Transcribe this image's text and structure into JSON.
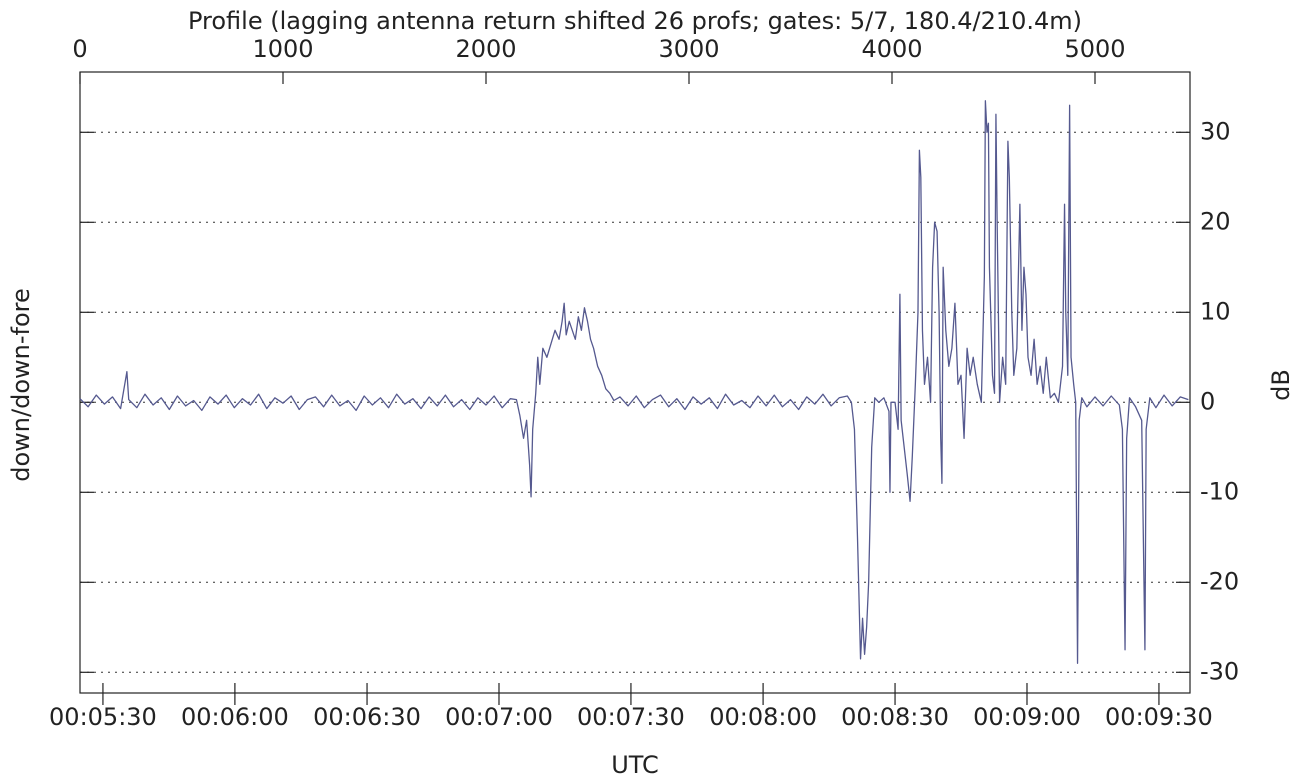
{
  "chart_data": {
    "type": "line",
    "title": "Profile (lagging antenna return shifted 26 profs; gates: 5/7, 180.4/210.4m)",
    "xlabel": "UTC",
    "ylabel": "down/down-fore",
    "y2label": "dB",
    "color": "#55598f",
    "grid": true,
    "xlim": [
      0,
      5468
    ],
    "ylim": [
      -32.3,
      36.7
    ],
    "xticks": [
      0,
      1000,
      2000,
      3000,
      4000,
      5000
    ],
    "x2ticks": [
      {
        "value": 113,
        "label": "00:05:30"
      },
      {
        "value": 763,
        "label": "00:06:00"
      },
      {
        "value": 1414,
        "label": "00:06:30"
      },
      {
        "value": 2064,
        "label": "00:07:00"
      },
      {
        "value": 2714,
        "label": "00:07:30"
      },
      {
        "value": 3365,
        "label": "00:08:00"
      },
      {
        "value": 4015,
        "label": "00:08:30"
      },
      {
        "value": 4665,
        "label": "00:09:00"
      },
      {
        "value": 5315,
        "label": "00:09:30"
      }
    ],
    "yticks": [
      -30,
      -20,
      -10,
      0,
      10,
      20,
      30
    ],
    "x": [
      0,
      40,
      80,
      120,
      160,
      200,
      231,
      240,
      280,
      320,
      360,
      400,
      440,
      480,
      520,
      560,
      600,
      640,
      680,
      720,
      760,
      800,
      840,
      880,
      920,
      960,
      1000,
      1040,
      1080,
      1120,
      1160,
      1200,
      1240,
      1280,
      1320,
      1360,
      1400,
      1440,
      1480,
      1520,
      1560,
      1600,
      1640,
      1680,
      1720,
      1760,
      1800,
      1840,
      1880,
      1920,
      1960,
      2000,
      2040,
      2080,
      2120,
      2150,
      2167,
      2185,
      2200,
      2215,
      2222,
      2230,
      2245,
      2255,
      2265,
      2280,
      2300,
      2320,
      2340,
      2360,
      2375,
      2385,
      2395,
      2410,
      2425,
      2440,
      2455,
      2470,
      2485,
      2500,
      2515,
      2530,
      2550,
      2570,
      2590,
      2610,
      2630,
      2660,
      2700,
      2740,
      2780,
      2820,
      2860,
      2900,
      2940,
      2980,
      3020,
      3060,
      3100,
      3140,
      3180,
      3220,
      3260,
      3300,
      3340,
      3380,
      3420,
      3460,
      3500,
      3540,
      3580,
      3620,
      3660,
      3700,
      3740,
      3780,
      3800,
      3815,
      3830,
      3845,
      3855,
      3865,
      3875,
      3885,
      3900,
      3915,
      3935,
      3960,
      3985,
      3990,
      3995,
      4015,
      4030,
      4039,
      4045,
      4060,
      4075,
      4089,
      4100,
      4115,
      4128,
      4135,
      4142,
      4150,
      4160,
      4175,
      4190,
      4200,
      4210,
      4222,
      4232,
      4240,
      4246,
      4252,
      4265,
      4280,
      4295,
      4310,
      4325,
      4340,
      4355,
      4370,
      4385,
      4400,
      4420,
      4440,
      4455,
      4460,
      4468,
      4475,
      4480,
      4495,
      4505,
      4512,
      4518,
      4530,
      4545,
      4560,
      4571,
      4578,
      4590,
      4600,
      4615,
      4630,
      4640,
      4650,
      4660,
      4670,
      4685,
      4700,
      4715,
      4730,
      4745,
      4760,
      4780,
      4800,
      4820,
      4840,
      4850,
      4856,
      4866,
      4875,
      4882,
      4895,
      4905,
      4914,
      4922,
      4935,
      4960,
      5000,
      5040,
      5080,
      5120,
      5135,
      5148,
      5156,
      5170,
      5200,
      5230,
      5246,
      5252,
      5270,
      5300,
      5340,
      5380,
      5420,
      5460
    ],
    "values": [
      0.4,
      -0.5,
      0.8,
      -0.2,
      0.6,
      -0.7,
      3.4,
      0.3,
      -0.6,
      0.9,
      -0.3,
      0.5,
      -0.8,
      0.7,
      -0.4,
      0.2,
      -0.9,
      0.6,
      -0.2,
      0.8,
      -0.6,
      0.4,
      -0.3,
      0.9,
      -0.7,
      0.5,
      -0.1,
      0.7,
      -0.8,
      0.3,
      0.6,
      -0.5,
      0.8,
      -0.4,
      0.2,
      -0.9,
      0.7,
      -0.3,
      0.5,
      -0.6,
      0.9,
      -0.2,
      0.4,
      -0.7,
      0.6,
      -0.4,
      0.8,
      -0.5,
      0.3,
      -0.8,
      0.5,
      -0.3,
      0.7,
      -0.6,
      0.4,
      0.3,
      -1.5,
      -4,
      -2,
      -7,
      -10.5,
      -3,
      1,
      5,
      2,
      6,
      5,
      6.5,
      8,
      7,
      9,
      11,
      7.5,
      9,
      8,
      7,
      9.5,
      8,
      10.5,
      9,
      7,
      6,
      4,
      3,
      1.5,
      1,
      0.2,
      0.6,
      -0.4,
      0.7,
      -0.6,
      0.3,
      0.8,
      -0.5,
      0.4,
      -0.8,
      0.6,
      -0.2,
      0.5,
      -0.7,
      0.9,
      -0.3,
      0.2,
      -0.6,
      0.7,
      -0.4,
      0.8,
      -0.5,
      0.3,
      -0.8,
      0.6,
      -0.2,
      0.9,
      -0.4,
      0.5,
      0.7,
      0,
      -3,
      -15,
      -28.5,
      -24,
      -28,
      -25,
      -20,
      -5,
      0.5,
      0,
      0.5,
      -1,
      -10,
      0,
      0,
      -3,
      12,
      -2,
      -5,
      -8,
      -11,
      -6,
      2,
      10,
      28,
      25,
      8,
      2,
      5,
      0,
      15,
      20,
      19,
      10,
      -4,
      -9,
      15,
      8,
      4,
      6,
      11,
      2,
      3,
      -4,
      6,
      3,
      5,
      2,
      0,
      14,
      33.5,
      30,
      31,
      15,
      3,
      1,
      32,
      20,
      0,
      5,
      2,
      29,
      25,
      10,
      3,
      6,
      22,
      8,
      15,
      12,
      5,
      3,
      7,
      2,
      4,
      1,
      5,
      0.5,
      1,
      0,
      4,
      22,
      10,
      3,
      33,
      5,
      2,
      0,
      -29,
      -2,
      0.5,
      -0.5,
      0.6,
      -0.4,
      0.7,
      -0.3,
      -3,
      -27.5,
      -4,
      0.5,
      -0.5,
      -2,
      -27.5,
      -3,
      0.5,
      -0.6,
      0.8,
      -0.4,
      0.6,
      0.3
    ]
  }
}
